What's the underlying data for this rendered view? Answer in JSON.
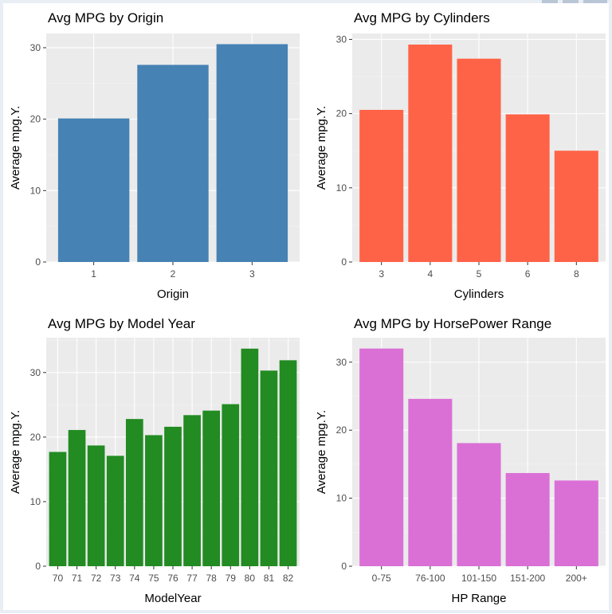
{
  "theme": {
    "panel_bg": "#EBEBEB",
    "grid_major": "#FFFFFF",
    "grid_minor": "#F4F4F4",
    "tick_color": "#4D4D4D",
    "text_color": "#000000"
  },
  "chart_data": [
    {
      "id": "origin",
      "type": "bar",
      "title": "Avg MPG by Origin",
      "xlabel": "Origin",
      "ylabel": "Average mpg.Y.",
      "categories": [
        "1",
        "2",
        "3"
      ],
      "values": [
        20.1,
        27.6,
        30.5
      ],
      "ylim": [
        0,
        32
      ],
      "yticks": [
        0,
        10,
        20,
        30
      ],
      "color": "#4682B4",
      "grid": true
    },
    {
      "id": "cylinders",
      "type": "bar",
      "title": "Avg MPG by Cylinders",
      "xlabel": "Cylinders",
      "ylabel": "Average mpg.Y.",
      "categories": [
        "3",
        "4",
        "5",
        "6",
        "8"
      ],
      "values": [
        20.5,
        29.3,
        27.4,
        19.9,
        15.0
      ],
      "ylim": [
        0,
        30.8
      ],
      "yticks": [
        0,
        10,
        20,
        30
      ],
      "color": "#FF6347",
      "grid": true
    },
    {
      "id": "modelyear",
      "type": "bar",
      "title": "Avg MPG by Model Year",
      "xlabel": "ModelYear",
      "ylabel": "Average mpg.Y.",
      "categories": [
        "70",
        "71",
        "72",
        "73",
        "74",
        "75",
        "76",
        "77",
        "78",
        "79",
        "80",
        "81",
        "82"
      ],
      "values": [
        17.7,
        21.1,
        18.7,
        17.1,
        22.8,
        20.3,
        21.6,
        23.4,
        24.1,
        25.1,
        33.7,
        30.3,
        31.9
      ],
      "ylim": [
        0,
        35.4
      ],
      "yticks": [
        0,
        10,
        20,
        30
      ],
      "color": "#228B22",
      "grid": true
    },
    {
      "id": "hprange",
      "type": "bar",
      "title": "Avg MPG by HorsePower Range",
      "xlabel": "HP Range",
      "ylabel": "Average mpg.Y.",
      "categories": [
        "0-75",
        "76-100",
        "101-150",
        "151-200",
        "200+"
      ],
      "values": [
        32.0,
        24.6,
        18.1,
        13.7,
        12.6
      ],
      "ylim": [
        0,
        33.6
      ],
      "yticks": [
        0,
        10,
        20,
        30
      ],
      "color": "#DA70D6",
      "grid": true
    }
  ]
}
